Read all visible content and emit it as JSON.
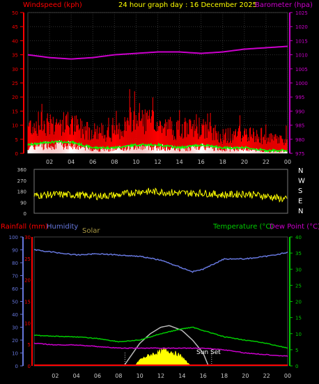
{
  "header": {
    "windspeed_label": "Windspeed (kph)",
    "title": "24 hour graph day : 16 December 2025",
    "barometer_label": "Barometer (hpa)"
  },
  "lower_header": {
    "rainfall_label": "Rainfall (mm)",
    "humidity_label": "Humidity",
    "solar_label": "Solar",
    "temperature_label": "Temperature (°C)",
    "dewpoint_label": "Dew Point (°C)"
  },
  "sunset_label": "Sun Set",
  "colors": {
    "wind_gust": "#ff0000",
    "wind_avg": "#00ff00",
    "wind_white": "#ffffff",
    "barometer": "#cc00cc",
    "direction": "#ffff00",
    "humidity": "#6677dd",
    "temperature": "#00cc00",
    "dewpoint": "#cc00cc",
    "rainfall": "#ff0000",
    "solar_fill": "#ffff00",
    "solar_max": "#bbbbbb",
    "left_axis_red": "#ff0000",
    "left_axis_blue": "#6677dd",
    "right_axis_magenta": "#cc00cc",
    "right_axis_green": "#00cc00"
  },
  "chart_data": [
    {
      "type": "line",
      "name": "wind_barometer",
      "x_ticks": [
        "02",
        "04",
        "06",
        "08",
        "10",
        "12",
        "14",
        "16",
        "18",
        "20",
        "22",
        "00"
      ],
      "left_axis": {
        "label": "Windspeed (kph)",
        "ylim": [
          0,
          50
        ],
        "ticks": [
          "0",
          "5",
          "10",
          "15",
          "20",
          "25",
          "30",
          "35",
          "40",
          "45",
          "50"
        ]
      },
      "right_axis": {
        "label": "Barometer (hpa)",
        "ylim": [
          975,
          1025
        ],
        "ticks": [
          "975",
          "980",
          "985",
          "990",
          "995",
          "1000",
          "1005",
          "1010",
          "1015",
          "1020",
          "1025"
        ]
      },
      "barometer": {
        "x": [
          0,
          2,
          4,
          6,
          8,
          10,
          12,
          14,
          16,
          18,
          20,
          22,
          24
        ],
        "y": [
          1010,
          1009,
          1008.5,
          1009,
          1010,
          1010.5,
          1011,
          1011,
          1010.5,
          1011,
          1012,
          1012.5,
          1013
        ]
      },
      "wind_gust_profile": {
        "x": [
          0,
          2,
          4,
          6,
          8,
          10,
          12,
          14,
          16,
          18,
          20,
          22,
          24
        ],
        "y": [
          10,
          11,
          10,
          8,
          7,
          13,
          10,
          8,
          9,
          6,
          7,
          5,
          5
        ]
      },
      "wind_avg_profile": {
        "x": [
          0,
          2,
          4,
          6,
          8,
          10,
          12,
          14,
          16,
          18,
          20,
          22,
          24
        ],
        "y": [
          3,
          4,
          4,
          2,
          2,
          3,
          3,
          2,
          3,
          2,
          2,
          1,
          1
        ]
      },
      "grid": true
    },
    {
      "type": "scatter",
      "name": "wind_direction",
      "x_ticks": [],
      "left_axis": {
        "ylim": [
          0,
          360
        ],
        "ticks": [
          "0",
          "90",
          "180",
          "270",
          "360"
        ]
      },
      "right_labels": [
        "N",
        "W",
        "S",
        "E",
        "N"
      ],
      "direction_profile": {
        "x": [
          0,
          2,
          4,
          6,
          8,
          10,
          12,
          14,
          16,
          18,
          20,
          22,
          24
        ],
        "y": [
          145,
          155,
          150,
          140,
          150,
          180,
          175,
          165,
          165,
          150,
          160,
          140,
          110
        ]
      },
      "grid": false
    },
    {
      "type": "line",
      "name": "temp_humidity",
      "x_ticks": [
        "02",
        "04",
        "06",
        "08",
        "10",
        "12",
        "14",
        "16",
        "18",
        "20",
        "22",
        "00"
      ],
      "left_axis_rain": {
        "label": "Rainfall (mm)",
        "ylim": [
          0,
          30
        ],
        "ticks": [
          "0",
          "5",
          "10",
          "15",
          "20",
          "25",
          "30"
        ]
      },
      "left_axis_humidity": {
        "label": "Humidity",
        "ylim": [
          0,
          100
        ],
        "ticks": [
          "0",
          "10",
          "20",
          "30",
          "40",
          "50",
          "60",
          "70",
          "80",
          "90",
          "100"
        ]
      },
      "right_axis": {
        "label": "Temperature (°C)",
        "ylim": [
          0,
          40
        ],
        "ticks": [
          "0",
          "5",
          "10",
          "15",
          "20",
          "25",
          "30",
          "35",
          "40"
        ]
      },
      "humidity": {
        "x": [
          0,
          2,
          4,
          6,
          8,
          10,
          12,
          14,
          15,
          16,
          18,
          20,
          22,
          24
        ],
        "y": [
          90,
          88,
          86,
          87,
          86,
          85,
          82,
          76,
          73,
          75,
          83,
          83,
          85,
          88
        ]
      },
      "temperature": {
        "x": [
          0,
          2,
          4,
          6,
          8,
          10,
          12,
          14,
          15,
          16,
          18,
          20,
          22,
          24
        ],
        "y": [
          9.5,
          9.2,
          9,
          8.5,
          7.5,
          8,
          10,
          11.5,
          12,
          11,
          9,
          8,
          7,
          5.5
        ]
      },
      "dewpoint": {
        "x": [
          0,
          2,
          4,
          6,
          8,
          10,
          12,
          14,
          16,
          18,
          20,
          22,
          24
        ],
        "y": [
          7,
          6.5,
          6.5,
          6,
          5.5,
          5.5,
          5.5,
          5.5,
          5.5,
          5,
          4,
          3.5,
          3
        ]
      },
      "rainfall": {
        "x": [
          0,
          24
        ],
        "y": [
          0,
          0
        ]
      },
      "solar_max": {
        "x": [
          8.5,
          10,
          11,
          12,
          12.8,
          14,
          15,
          16,
          16.5
        ],
        "y": [
          0,
          7,
          10,
          12,
          12.5,
          11,
          8,
          4,
          0
        ]
      },
      "solar": {
        "x": [
          9.5,
          10,
          11,
          12,
          12.5,
          13,
          14,
          14.5,
          15
        ],
        "y": [
          0,
          2,
          3.5,
          4.5,
          5,
          4.5,
          3,
          1,
          0
        ]
      },
      "sunset_marker_x": 16.8,
      "sunrise_marker_x": 8.6,
      "grid": false
    }
  ]
}
